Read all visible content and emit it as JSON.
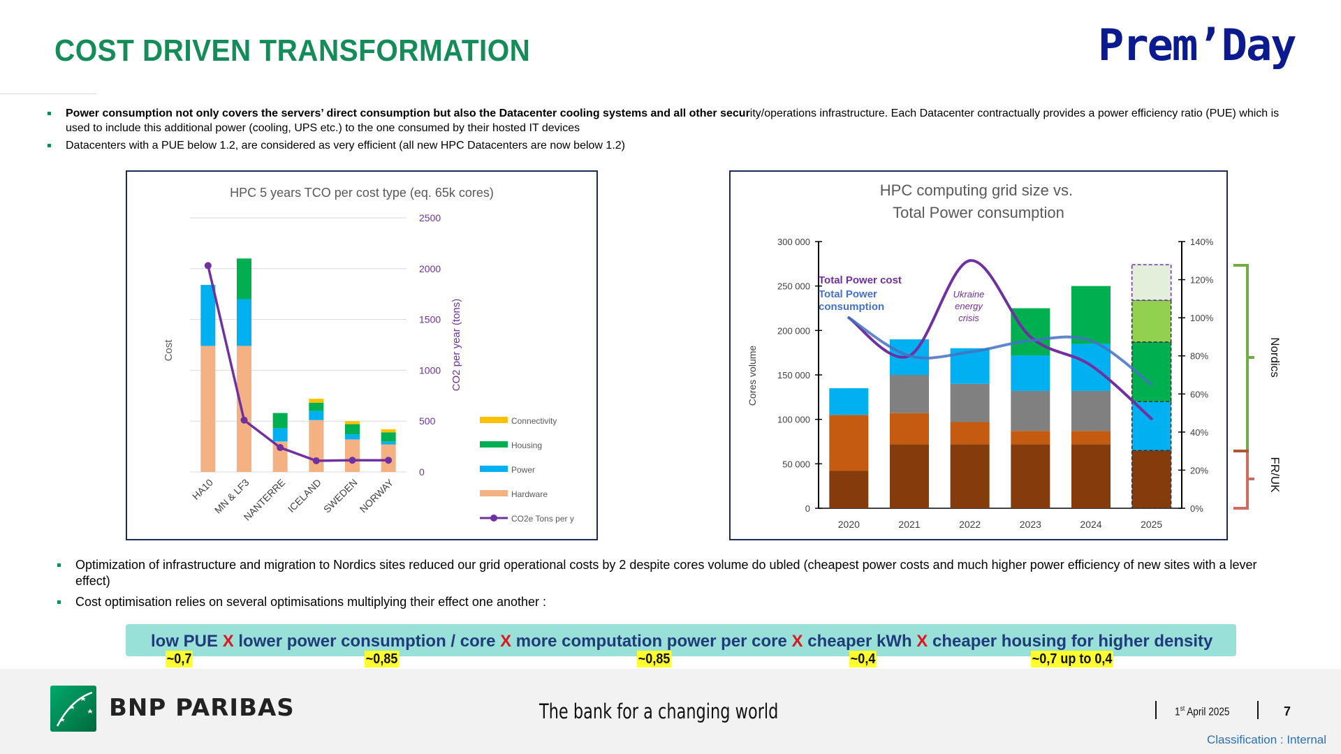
{
  "title": "COST DRIVEN TRANSFORMATION",
  "brand_logo": "Prem’Day",
  "intro_bullets": [
    {
      "bold": "Power consumption not only covers the servers’ direct consumption but also the Datacenter cooling systems and all other secur",
      "text": "ity/operations infrastructure. Each Datacenter contractually provides a power efficiency ratio (PUE) which is used to include this additional power (cooling, UPS etc.) to the one consumed by their hosted IT devices"
    },
    {
      "bold": "",
      "text": "Datacenters with a PUE below 1.2, are considered as very efficient (all new HPC Datacenters are now below 1.2)"
    }
  ],
  "chart_data": [
    {
      "type": "bar",
      "title": "HPC 5 years TCO per cost type (eq. 65k cores)",
      "ylabel": "Cost",
      "y2label": "CO2 per year (tons)",
      "ylim": [
        0,
        2500
      ],
      "y2ticks": [
        "2500",
        "2000",
        "1500",
        "1000",
        "500",
        "0"
      ],
      "categories": [
        "HA10",
        "MN & LF3",
        "NANTERRE",
        "ICELAND",
        "SWEDEN",
        "NORWAY"
      ],
      "stacked": true,
      "series": [
        {
          "name": "Hardware",
          "color": "#f4b183",
          "values": [
            1240,
            1240,
            300,
            510,
            320,
            270
          ]
        },
        {
          "name": "Power",
          "color": "#00b0f0",
          "values": [
            600,
            460,
            130,
            90,
            50,
            30
          ]
        },
        {
          "name": "Housing",
          "color": "#00b050",
          "values": [
            0,
            400,
            150,
            80,
            100,
            90
          ]
        },
        {
          "name": "Connectivity",
          "color": "#ffc000",
          "values": [
            0,
            0,
            0,
            40,
            30,
            30
          ]
        }
      ],
      "line_series": {
        "name": "CO2e Tons per y",
        "color": "#7030a0",
        "values": [
          2030,
          510,
          240,
          110,
          115,
          115
        ]
      },
      "legend": "right",
      "legend_entries": [
        "Connectivity",
        "Housing",
        "Power",
        "Hardware",
        "CO2e Tons per y"
      ]
    },
    {
      "type": "bar",
      "title": "HPC computing grid size vs. Total Power consumption",
      "ylabel": "Cores volume",
      "ylim": [
        0,
        300000
      ],
      "yticks": [
        "300 000",
        "250 000",
        "200 000",
        "150 000",
        "100 000",
        "50 000",
        "0"
      ],
      "y2ticks": [
        "140%",
        "120%",
        "100%",
        "80%",
        "60%",
        "40%",
        "20%",
        "0%"
      ],
      "y2lim": [
        0,
        140
      ],
      "categories": [
        "2020",
        "2021",
        "2022",
        "2023",
        "2024",
        "2025"
      ],
      "stacked": true,
      "series": [
        {
          "color": "#843c0c",
          "values": [
            42000,
            72000,
            72000,
            72000,
            72000,
            65000
          ]
        },
        {
          "color": "#c55a11",
          "values": [
            63000,
            35000,
            25000,
            15000,
            15000,
            0
          ]
        },
        {
          "color": "#808080",
          "values": [
            0,
            43000,
            43000,
            45000,
            45000,
            0
          ]
        },
        {
          "color": "#00b0f0",
          "values": [
            30000,
            40000,
            40000,
            40000,
            53000,
            55000
          ]
        },
        {
          "color": "#00b050",
          "values": [
            0,
            0,
            0,
            53000,
            65000,
            67000
          ]
        },
        {
          "color": "#92d050",
          "values": [
            0,
            0,
            0,
            0,
            0,
            47000
          ]
        },
        {
          "color": "#e2efda",
          "values": [
            0,
            0,
            0,
            0,
            0,
            40000
          ]
        }
      ],
      "line_series": [
        {
          "name": "Total Power cost",
          "color": "#7030a0",
          "values_pct": [
            100,
            80,
            130,
            90,
            75,
            47
          ]
        },
        {
          "name": "Total Power consumption",
          "color": "#4472c4",
          "values_pct": [
            100,
            80,
            82,
            88,
            88,
            65
          ]
        }
      ],
      "annotation": [
        "Ukraine",
        "energy",
        "crisis"
      ],
      "bracket_labels": [
        "Nordics",
        "FR/UK"
      ]
    }
  ],
  "lower_bullets": [
    "Optimization of infrastructure and migration to Nordics sites reduced our grid operational costs by 2 despite cores volume do ubled (cheapest power costs and much higher power efficiency of new sites with a lever effect)",
    "Cost optimisation relies on several optimisations multiplying their effect one another :"
  ],
  "formula": {
    "terms": [
      "low PUE",
      "lower power consumption / core",
      "more computation power per core",
      "cheaper kWh",
      "cheaper housing for higher density"
    ],
    "operator": "X",
    "factors": [
      "~0,7",
      "~0,85",
      "~0,85",
      "~0,4",
      "~0,7 up to 0,4"
    ]
  },
  "footer": {
    "bank_name": "BNP PARIBAS",
    "tagline": "The bank for a changing world",
    "date_day": "1",
    "date_sup": "st",
    "date_rest": " April 2025",
    "page_number": "7",
    "classification": "Classification : Internal"
  }
}
